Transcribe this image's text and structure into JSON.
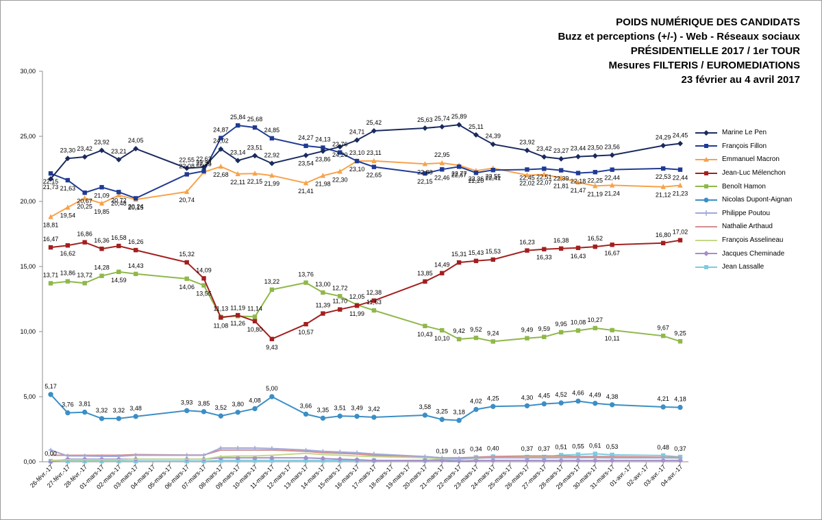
{
  "header": {
    "title_lines": [
      "POIDS NUMÉRIQUE DES CANDIDATS",
      "Buzz et perceptions (+/-) - Web - Réseaux sociaux",
      "PRÉSIDENTIELLE 2017 / 1er TOUR",
      "Mesures FILTERIS / EUROMEDIATIONS",
      "23 février au 4 avril 2017"
    ]
  },
  "chart_data": {
    "type": "line",
    "title": "POIDS NUMÉRIQUE DES CANDIDATS",
    "ylim": [
      0,
      30
    ],
    "yticks": [
      "0,00",
      "5,00",
      "10,00",
      "15,00",
      "20,00",
      "25,00",
      "30,00"
    ],
    "grid": false,
    "legend_position": "right",
    "categories": [
      "26-févr.-17",
      "27-févr.-17",
      "28-févr.-17",
      "01-mars-17",
      "02-mars-17",
      "03-mars-17",
      "04-mars-17",
      "05-mars-17",
      "06-mars-17",
      "07-mars-17",
      "08-mars-17",
      "09-mars-17",
      "10-mars-17",
      "11-mars-17",
      "12-mars-17",
      "13-mars-17",
      "14-mars-17",
      "15-mars-17",
      "16-mars-17",
      "17-mars-17",
      "18-mars-17",
      "19-mars-17",
      "20-mars-17",
      "21-mars-17",
      "22-mars-17",
      "23-mars-17",
      "24-mars-17",
      "25-mars-17",
      "26-mars-17",
      "27-mars-17",
      "28-mars-17",
      "29-mars-17",
      "30-mars-17",
      "31-mars-17",
      "01-avr.-17",
      "02-avr.-17",
      "03-avr.-17",
      "04-avr.-17"
    ],
    "series": [
      {
        "name": "Marine Le Pen",
        "color": "#1a2a5e",
        "marker": "diamond",
        "values": [
          21.73,
          23.3,
          23.42,
          23.92,
          23.21,
          24.05,
          null,
          null,
          22.55,
          22.63,
          24.02,
          23.14,
          23.51,
          22.92,
          null,
          23.54,
          23.86,
          24.2,
          24.71,
          25.42,
          null,
          null,
          25.63,
          25.74,
          25.89,
          25.11,
          24.39,
          null,
          23.92,
          23.42,
          23.27,
          23.44,
          23.5,
          23.56,
          null,
          null,
          24.29,
          24.45
        ]
      },
      {
        "name": "François Fillon",
        "color": "#1f3a93",
        "marker": "square",
        "values": [
          22.15,
          21.63,
          20.67,
          21.09,
          20.72,
          20.24,
          null,
          null,
          22.08,
          22.33,
          24.87,
          25.84,
          25.68,
          24.85,
          null,
          24.27,
          24.13,
          23.76,
          23.1,
          22.65,
          null,
          null,
          22.15,
          22.46,
          22.67,
          22.2,
          22.41,
          null,
          22.45,
          22.51,
          22.39,
          22.18,
          22.25,
          22.44,
          null,
          null,
          22.53,
          22.44
        ]
      },
      {
        "name": "Emmanuel Macron",
        "color": "#f7a24b",
        "marker": "triangle",
        "values": [
          18.81,
          19.54,
          20.25,
          19.85,
          20.48,
          20.15,
          null,
          null,
          20.74,
          22.25,
          22.68,
          22.11,
          22.15,
          21.99,
          null,
          21.41,
          21.98,
          22.3,
          23.1,
          23.11,
          null,
          null,
          22.88,
          22.95,
          22.77,
          22.36,
          22.55,
          null,
          22.02,
          22.07,
          21.81,
          21.47,
          21.19,
          21.24,
          null,
          null,
          21.12,
          21.23
        ]
      },
      {
        "name": "Jean-Luc Mélenchon",
        "color": "#a31f1f",
        "marker": "square",
        "values": [
          16.47,
          16.62,
          16.86,
          16.36,
          16.58,
          16.26,
          null,
          null,
          15.32,
          14.09,
          11.08,
          11.26,
          10.8,
          9.43,
          null,
          10.57,
          11.39,
          11.7,
          11.99,
          12.38,
          null,
          null,
          13.85,
          14.49,
          15.31,
          15.43,
          15.53,
          null,
          16.23,
          16.33,
          16.38,
          16.43,
          16.52,
          16.67,
          null,
          null,
          16.8,
          17.02
        ]
      },
      {
        "name": "Benoît Hamon",
        "color": "#8fb84a",
        "marker": "square",
        "values": [
          13.71,
          13.86,
          13.72,
          14.28,
          14.59,
          14.43,
          null,
          null,
          14.06,
          13.55,
          11.13,
          11.19,
          11.14,
          13.22,
          null,
          13.76,
          13.0,
          12.72,
          12.05,
          11.63,
          null,
          null,
          10.43,
          10.1,
          9.42,
          9.52,
          9.24,
          null,
          9.49,
          9.59,
          9.95,
          10.08,
          10.27,
          10.11,
          null,
          null,
          9.67,
          9.25
        ]
      },
      {
        "name": "Nicolas Dupont-Aignan",
        "color": "#3b8ec6",
        "marker": "circle",
        "values": [
          5.17,
          3.76,
          3.81,
          3.32,
          3.32,
          3.48,
          null,
          null,
          3.93,
          3.85,
          3.52,
          3.8,
          4.08,
          5.0,
          null,
          3.66,
          3.35,
          3.51,
          3.49,
          3.42,
          null,
          null,
          3.58,
          3.25,
          3.18,
          4.02,
          4.25,
          null,
          4.3,
          4.45,
          4.52,
          4.66,
          4.49,
          4.38,
          null,
          null,
          4.21,
          4.18
        ]
      },
      {
        "name": "Philippe Poutou",
        "color": "#9fa8d8",
        "marker": "plus",
        "values": [
          0.9,
          0.45,
          0.45,
          0.42,
          0.42,
          0.5,
          null,
          null,
          0.5,
          0.5,
          1.05,
          1.05,
          1.05,
          1.02,
          null,
          0.9,
          0.8,
          0.75,
          0.7,
          0.6,
          null,
          null,
          0.4,
          0.3,
          0.25,
          0.3,
          0.3,
          null,
          0.3,
          0.3,
          0.3,
          0.3,
          0.32,
          0.3,
          null,
          null,
          0.3,
          0.3
        ]
      },
      {
        "name": "Nathalie Arthaud",
        "color": "#d48c8c",
        "marker": "none",
        "values": [
          0.5,
          0.5,
          0.5,
          0.5,
          0.5,
          0.55,
          null,
          null,
          0.52,
          0.52,
          0.9,
          0.9,
          0.9,
          0.9,
          null,
          0.8,
          0.7,
          0.65,
          0.6,
          0.5,
          null,
          null,
          0.4,
          0.3,
          0.3,
          0.35,
          0.4,
          null,
          0.45,
          0.45,
          0.45,
          0.4,
          0.4,
          0.4,
          null,
          null,
          0.35,
          0.35
        ]
      },
      {
        "name": "François Asselineau",
        "color": "#c3d88a",
        "marker": "none",
        "values": [
          0.1,
          0.15,
          0.15,
          0.15,
          0.15,
          0.2,
          null,
          null,
          0.2,
          0.2,
          0.4,
          0.45,
          0.45,
          0.5,
          null,
          0.65,
          0.55,
          0.5,
          0.45,
          0.4,
          null,
          null,
          0.3,
          0.25,
          0.2,
          0.25,
          0.35,
          null,
          0.4,
          0.35,
          0.35,
          0.35,
          0.3,
          0.3,
          null,
          null,
          0.3,
          0.28
        ]
      },
      {
        "name": "Jacques Cheminade",
        "color": "#a48fc8",
        "marker": "diamond",
        "values": [
          0.0,
          0.2,
          0.2,
          0.2,
          0.2,
          0.2,
          null,
          null,
          0.2,
          0.2,
          0.3,
          0.3,
          0.3,
          0.3,
          null,
          0.3,
          0.25,
          0.2,
          0.15,
          0.1,
          null,
          null,
          0.1,
          0.1,
          0.05,
          0.1,
          0.1,
          null,
          0.1,
          0.1,
          0.1,
          0.1,
          0.1,
          0.1,
          null,
          null,
          0.1,
          0.1
        ]
      },
      {
        "name": "Jean Lassalle",
        "color": "#7fcbe0",
        "marker": "square",
        "values": [
          0.05,
          0.05,
          0.05,
          0.05,
          0.05,
          0.05,
          null,
          null,
          0.05,
          0.05,
          0.1,
          0.1,
          0.1,
          0.1,
          null,
          0.1,
          0.1,
          0.1,
          0.1,
          0.1,
          null,
          null,
          0.1,
          0.19,
          0.15,
          0.34,
          0.4,
          null,
          0.37,
          0.37,
          0.51,
          0.55,
          0.61,
          0.53,
          null,
          null,
          0.48,
          0.37
        ]
      }
    ],
    "data_labels": {
      "Marine Le Pen": [
        "21,73",
        "23,30",
        "23,42",
        "23,92",
        "23,21",
        "24,05",
        null,
        null,
        "22,55",
        "22,63",
        "24,02",
        "23,14",
        "23,51",
        "22,92",
        null,
        "23,54",
        "23,86",
        "24,20",
        "24,71",
        "25,42",
        null,
        null,
        "25,63",
        "25,74",
        "25,89",
        "25,11",
        "24,39",
        null,
        "23,92",
        "23,42",
        "23,27",
        "23,44",
        "23,50",
        "23,56",
        null,
        null,
        "24,29",
        "24,45"
      ],
      "François Fillon": [
        "22,15",
        "21,63",
        "20,67",
        "21,09",
        "20,72",
        "20,24",
        null,
        null,
        "22,08",
        "22,33",
        "24,87",
        "25,84",
        "25,68",
        "24,85",
        null,
        "24,27",
        "24,13",
        "23,76",
        "23,10",
        "22,65",
        null,
        null,
        "22,15",
        "22,46",
        "22,67",
        "22,20",
        "22,41",
        null,
        "22,45",
        "22,51",
        "22,39",
        "22,18",
        "22,25",
        "22,44",
        null,
        null,
        "22,53",
        "22,44"
      ],
      "Emmanuel Macron": [
        "18,81",
        "19,54",
        "20,25",
        "19,85",
        "20,48",
        "20,15",
        null,
        null,
        "20,74",
        "22,25",
        "22,68",
        "22,11",
        "22,15",
        "21,99",
        null,
        "21,41",
        "21,98",
        "22,30",
        "23,10",
        "23,11",
        null,
        null,
        "22,88",
        "22,95",
        "22,77",
        "22,36",
        "22,55",
        null,
        "22,02",
        "22,07",
        "21,81",
        "21,47",
        "21,19",
        "21,24",
        null,
        null,
        "21,12",
        "21,23"
      ],
      "Jean-Luc Mélenchon": [
        "16,47",
        "16,62",
        "16,86",
        "16,36",
        "16,58",
        "16,26",
        null,
        null,
        "15,32",
        "14,09",
        "11,08",
        "11,26",
        "10,80",
        "9,43",
        null,
        "10,57",
        "11,39",
        "11,70",
        "11,99",
        "12,38",
        null,
        null,
        "13,85",
        "14,49",
        "15,31",
        "15,43",
        "15,53",
        null,
        "16,23",
        "16,33",
        "16,38",
        "16,43",
        "16,52",
        "16,67",
        null,
        null,
        "16,80",
        "17,02"
      ],
      "Benoît Hamon": [
        "13,71",
        "13,86",
        "13,72",
        "14,28",
        "14,59",
        "14,43",
        null,
        null,
        "14,06",
        "13,55",
        "11,13",
        "11,19",
        "11,14",
        "13,22",
        null,
        "13,76",
        "13,00",
        "12,72",
        "12,05",
        "11,63",
        null,
        null,
        "10,43",
        "10,10",
        "9,42",
        "9,52",
        "9,24",
        null,
        "9,49",
        "9,59",
        "9,95",
        "10,08",
        "10,27",
        "10,11",
        null,
        null,
        "9,67",
        "9,25"
      ],
      "Nicolas Dupont-Aignan": [
        "5,17",
        "3,76",
        "3,81",
        "3,32",
        "3,32",
        "3,48",
        null,
        null,
        "3,93",
        "3,85",
        "3,52",
        "3,80",
        "4,08",
        "5,00",
        null,
        "3,66",
        "3,35",
        "3,51",
        "3,49",
        "3,42",
        null,
        null,
        "3,58",
        "3,25",
        "3,18",
        "4,02",
        "4,25",
        null,
        "4,30",
        "4,45",
        "4,52",
        "4,66",
        "4,49",
        "4,38",
        null,
        null,
        "4,21",
        "4,18"
      ],
      "Jacques Cheminade": [
        "0,00",
        null,
        null,
        null,
        null,
        null,
        null,
        null,
        null,
        null,
        null,
        null,
        null,
        null,
        null,
        null,
        null,
        null,
        null,
        null,
        null,
        null,
        null,
        null,
        null,
        null,
        null,
        null,
        null,
        null,
        null,
        null,
        null,
        null,
        null,
        null,
        null,
        null
      ],
      "Jean Lassalle": [
        null,
        null,
        null,
        null,
        null,
        null,
        null,
        null,
        null,
        null,
        null,
        null,
        null,
        null,
        null,
        null,
        null,
        null,
        null,
        null,
        null,
        null,
        null,
        "0,19",
        "0,15",
        "0,34",
        "0,40",
        null,
        "0,37",
        "0,37",
        "0,51",
        "0,55",
        "0,61",
        "0,53",
        null,
        null,
        "0,48",
        "0,37"
      ]
    }
  }
}
